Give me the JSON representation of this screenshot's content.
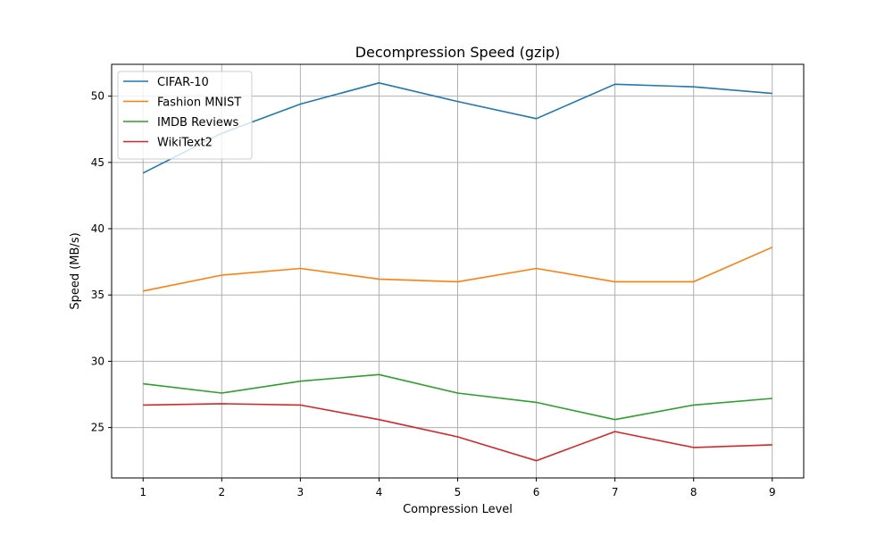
{
  "chart_data": {
    "type": "line",
    "title": "Decompression Speed (gzip)",
    "xlabel": "Compression Level",
    "ylabel": "Speed (MB/s)",
    "x": [
      1,
      2,
      3,
      4,
      5,
      6,
      7,
      8,
      9
    ],
    "xlim": [
      0.6,
      9.4
    ],
    "ylim": [
      21.2,
      52.4
    ],
    "yticks": [
      25,
      30,
      35,
      40,
      45,
      50
    ],
    "grid": true,
    "legend_position": "top-left",
    "series": [
      {
        "name": "CIFAR-10",
        "color": "#1f77b4",
        "values": [
          44.2,
          47.2,
          49.4,
          51.0,
          49.6,
          48.3,
          50.9,
          50.7,
          50.2
        ]
      },
      {
        "name": "Fashion MNIST",
        "color": "#ff7f0e",
        "values": [
          35.3,
          36.5,
          37.0,
          36.2,
          36.0,
          37.0,
          36.0,
          36.0,
          38.6
        ]
      },
      {
        "name": "IMDB Reviews",
        "color": "#2ca02c",
        "values": [
          28.3,
          27.6,
          28.5,
          29.0,
          27.6,
          26.9,
          25.6,
          26.7,
          27.2
        ]
      },
      {
        "name": "WikiText2",
        "color": "#d62728",
        "values": [
          26.7,
          26.8,
          26.7,
          25.6,
          24.3,
          22.5,
          24.7,
          23.5,
          23.7
        ]
      }
    ]
  }
}
